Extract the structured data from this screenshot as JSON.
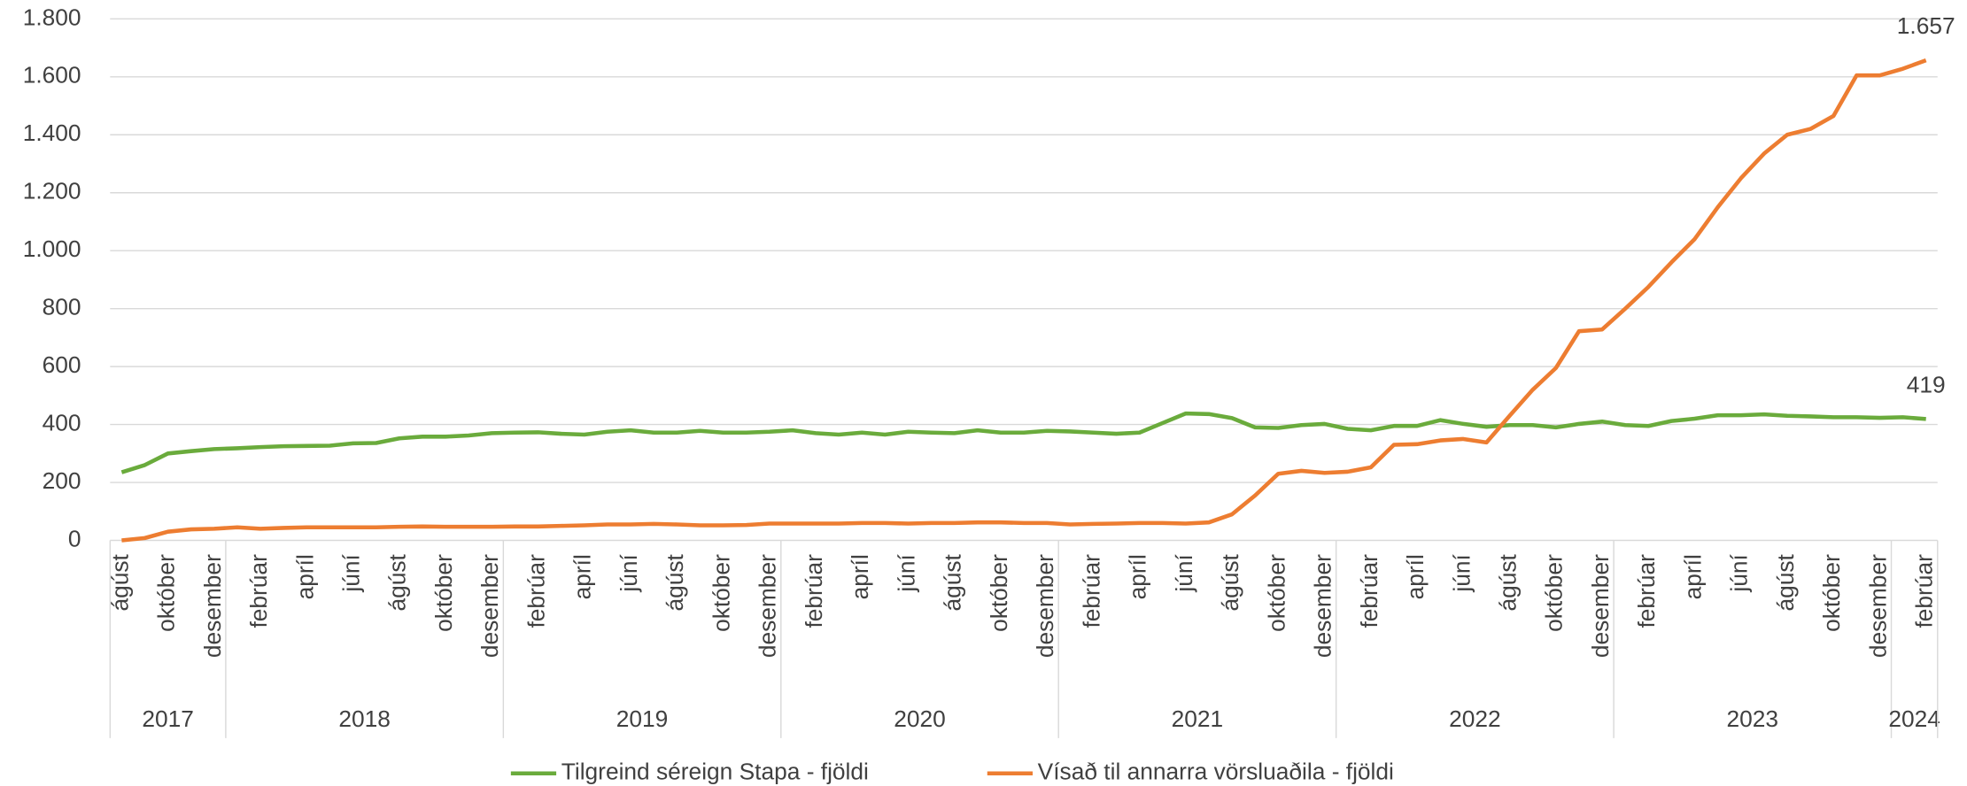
{
  "chart_data": {
    "type": "line",
    "groups": [
      {
        "label": "2017",
        "categories": [
          "ágúst",
          null,
          "október",
          null,
          "desember"
        ]
      },
      {
        "label": "2018",
        "categories": [
          null,
          "febrúar",
          null,
          "apríl",
          null,
          "júní",
          null,
          "ágúst",
          null,
          "október",
          null,
          "desember"
        ]
      },
      {
        "label": "2019",
        "categories": [
          null,
          "febrúar",
          null,
          "apríl",
          null,
          "júní",
          null,
          "ágúst",
          null,
          "október",
          null,
          "desember"
        ]
      },
      {
        "label": "2020",
        "categories": [
          null,
          "febrúar",
          null,
          "apríl",
          null,
          "júní",
          null,
          "ágúst",
          null,
          "október",
          null,
          "desember"
        ]
      },
      {
        "label": "2021",
        "categories": [
          null,
          "febrúar",
          null,
          "apríl",
          null,
          "júní",
          null,
          "ágúst",
          null,
          "október",
          null,
          "desember"
        ]
      },
      {
        "label": "2022",
        "categories": [
          null,
          "febrúar",
          null,
          "apríl",
          null,
          "júní",
          null,
          "ágúst",
          null,
          "október",
          null,
          "desember"
        ]
      },
      {
        "label": "2023",
        "categories": [
          null,
          "febrúar",
          null,
          "apríl",
          null,
          "júní",
          null,
          "ágúst",
          null,
          "október",
          null,
          "desember"
        ]
      },
      {
        "label": "2024",
        "categories": [
          null,
          "febrúar"
        ]
      }
    ],
    "series": [
      {
        "name": "Tilgreind séreign Stapa - fjöldi",
        "color": "#6aab3c",
        "values": [
          235,
          260,
          300,
          308,
          315,
          318,
          322,
          325,
          326,
          327,
          335,
          336,
          352,
          358,
          358,
          362,
          370,
          372,
          373,
          368,
          365,
          375,
          380,
          372,
          372,
          378,
          372,
          372,
          375,
          380,
          370,
          365,
          372,
          365,
          375,
          372,
          370,
          380,
          372,
          372,
          378,
          376,
          372,
          368,
          372,
          405,
          438,
          436,
          422,
          390,
          388,
          398,
          402,
          385,
          380,
          395,
          395,
          415,
          402,
          392,
          398,
          398,
          390,
          402,
          410,
          398,
          395,
          412,
          420,
          432,
          432,
          435,
          430,
          428,
          425,
          425,
          423,
          425,
          419
        ],
        "value_labels": [
          null,
          null,
          null,
          null,
          null,
          null,
          null,
          null,
          null,
          null,
          null,
          null,
          null,
          null,
          null,
          null,
          null,
          null,
          null,
          null,
          null,
          null,
          null,
          null,
          null,
          null,
          null,
          null,
          null,
          null,
          null,
          null,
          null,
          null,
          null,
          null,
          null,
          null,
          null,
          null,
          null,
          null,
          null,
          null,
          null,
          null,
          null,
          null,
          null,
          null,
          null,
          null,
          null,
          null,
          null,
          null,
          null,
          null,
          null,
          null,
          null,
          null,
          null,
          null,
          null,
          null,
          null,
          null,
          null,
          null,
          null,
          null,
          null,
          null,
          null,
          null,
          null,
          null,
          "419"
        ]
      },
      {
        "name": "Vísað til annarra vörsluaðila - fjöldi",
        "color": "#ed7d31",
        "values": [
          0,
          8,
          30,
          38,
          40,
          45,
          40,
          43,
          45,
          45,
          45,
          45,
          47,
          48,
          47,
          47,
          47,
          48,
          48,
          50,
          52,
          55,
          55,
          57,
          55,
          52,
          52,
          53,
          58,
          58,
          58,
          58,
          60,
          60,
          58,
          60,
          60,
          62,
          62,
          60,
          60,
          55,
          57,
          58,
          60,
          60,
          58,
          62,
          90,
          155,
          230,
          240,
          233,
          237,
          252,
          330,
          332,
          345,
          350,
          338,
          430,
          520,
          595,
          722,
          728,
          800,
          875,
          960,
          1040,
          1150,
          1250,
          1335,
          1400,
          1420,
          1465,
          1605,
          1605,
          1628,
          1657
        ],
        "value_labels": [
          null,
          null,
          null,
          null,
          null,
          null,
          null,
          null,
          null,
          null,
          null,
          null,
          null,
          null,
          null,
          null,
          null,
          null,
          null,
          null,
          null,
          null,
          null,
          null,
          null,
          null,
          null,
          null,
          null,
          null,
          null,
          null,
          null,
          null,
          null,
          null,
          null,
          null,
          null,
          null,
          null,
          null,
          null,
          null,
          null,
          null,
          null,
          null,
          null,
          null,
          null,
          null,
          null,
          null,
          null,
          null,
          null,
          null,
          null,
          null,
          null,
          null,
          null,
          null,
          null,
          null,
          null,
          null,
          null,
          null,
          null,
          null,
          null,
          null,
          null,
          null,
          null,
          null,
          "1.657"
        ]
      }
    ],
    "ylim": [
      0,
      1800
    ],
    "yticks": [
      0,
      200,
      400,
      600,
      800,
      {
        "value": 1000,
        "label": "1.000"
      },
      {
        "value": 1200,
        "label": "1.200"
      },
      {
        "value": 1400,
        "label": "1.400"
      },
      {
        "value": 1600,
        "label": "1.600"
      },
      {
        "value": 1800,
        "label": "1.800"
      }
    ],
    "grid": true,
    "legend": "bottom"
  }
}
